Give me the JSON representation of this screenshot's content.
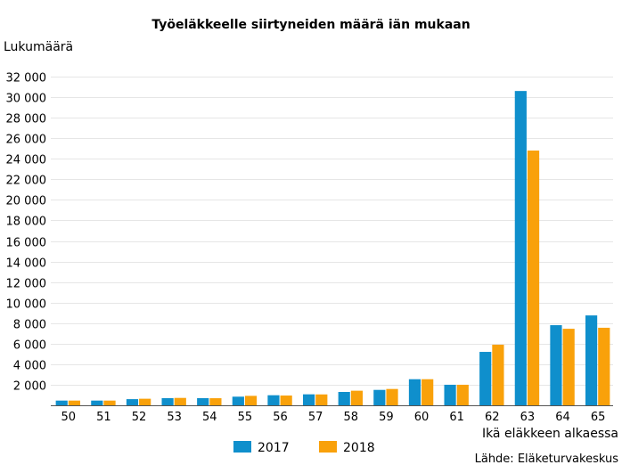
{
  "chart_data": {
    "type": "bar",
    "title": "Työeläkkeelle siirtyneiden määrä iän mukaan",
    "ylabel": "Lukumäärä",
    "xlabel": "Ikä eläkkeen alkaessa",
    "source": "Lähde: Eläketurvakeskus",
    "ylim": [
      0,
      32000
    ],
    "yticks": [
      0,
      2000,
      4000,
      6000,
      8000,
      10000,
      12000,
      14000,
      16000,
      18000,
      20000,
      22000,
      24000,
      26000,
      28000,
      30000,
      32000
    ],
    "ytick_labels": [
      "",
      "2 000",
      "4 000",
      "6 000",
      "8 000",
      "10 000",
      "12 000",
      "14 000",
      "16 000",
      "18 000",
      "20 000",
      "22 000",
      "24 000",
      "26 000",
      "28 000",
      "30 000",
      "32 000"
    ],
    "grid": true,
    "legend_position": "bottom-center",
    "categories": [
      "50",
      "51",
      "52",
      "53",
      "54",
      "55",
      "56",
      "57",
      "58",
      "59",
      "60",
      "61",
      "62",
      "63",
      "64",
      "65"
    ],
    "series": [
      {
        "name": "2017",
        "color": "#0f8fcc",
        "values": [
          460,
          460,
          600,
          700,
          700,
          840,
          980,
          1070,
          1300,
          1500,
          2540,
          2000,
          5200,
          30600,
          7800,
          8750
        ]
      },
      {
        "name": "2018",
        "color": "#f9a10a",
        "values": [
          460,
          460,
          640,
          720,
          690,
          920,
          950,
          1060,
          1420,
          1590,
          2540,
          2000,
          5900,
          24800,
          7450,
          7550
        ]
      }
    ]
  }
}
